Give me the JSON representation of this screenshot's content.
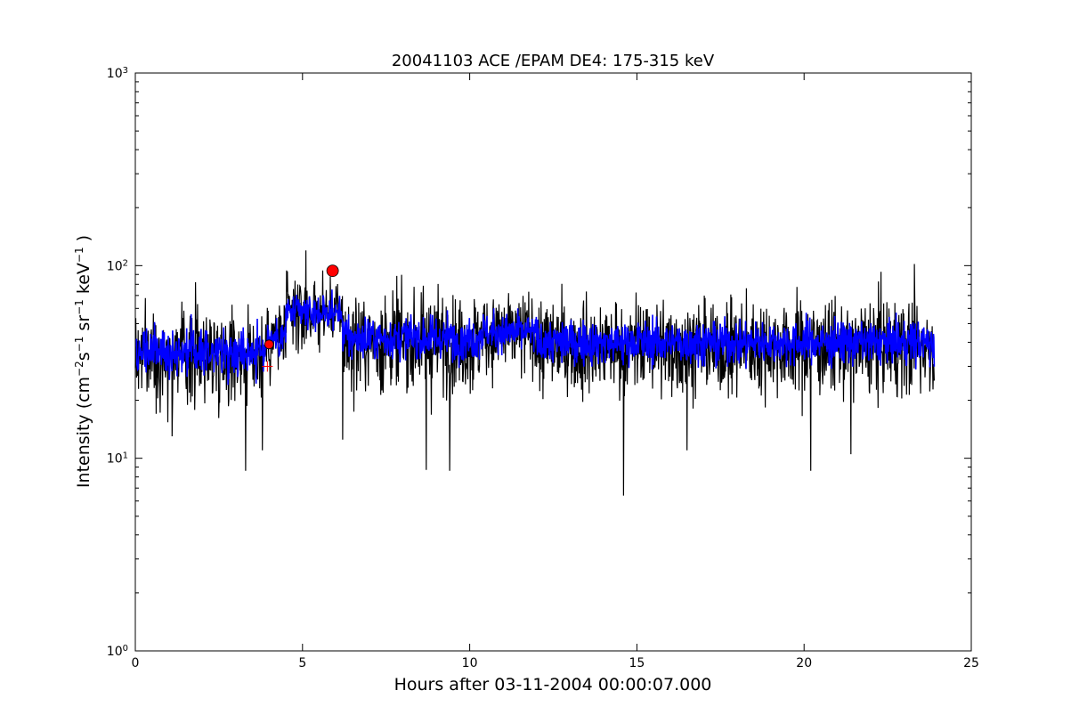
{
  "chart_data": {
    "type": "line",
    "title": "20041103 ACE /EPAM DE4: 175-315 keV",
    "xlabel": "Hours after 03-11-2004 00:00:07.000",
    "ylabel": "Intensity (cm",
    "ylabel_parts": {
      "base": "Intensity (cm",
      "cm_exp": "−2",
      "s_base": "s",
      "s_exp": "−1",
      "sr_base": " sr",
      "sr_exp": "−1",
      "kev_base": " keV",
      "kev_exp": "−1",
      "close": " )"
    },
    "xlim": [
      0,
      25
    ],
    "ylim": [
      1,
      1000
    ],
    "yscale": "log",
    "grid": false,
    "x_ticks": [
      {
        "value": 0,
        "label": "0"
      },
      {
        "value": 5,
        "label": "5"
      },
      {
        "value": 10,
        "label": "10"
      },
      {
        "value": 15,
        "label": "15"
      },
      {
        "value": 20,
        "label": "20"
      },
      {
        "value": 25,
        "label": "25"
      }
    ],
    "y_ticks": [
      {
        "value": 1,
        "base": "10",
        "exp": "0"
      },
      {
        "value": 10,
        "base": "10",
        "exp": "1"
      },
      {
        "value": 100,
        "base": "10",
        "exp": "2"
      },
      {
        "value": 1000,
        "base": "10",
        "exp": "3"
      }
    ],
    "series": [
      {
        "color": "#000000",
        "style": "raw-noisy",
        "segments": [
          {
            "x": [
              0,
              3.9
            ],
            "mean": 35,
            "spread": 0.17
          },
          {
            "x": [
              3.9,
              4.5
            ],
            "mean": 42,
            "spread": 0.15
          },
          {
            "x": [
              4.5,
              6.2
            ],
            "mean": 56,
            "spread": 0.13
          },
          {
            "x": [
              6.2,
              10.3
            ],
            "mean": 40,
            "spread": 0.18
          },
          {
            "x": [
              10.3,
              12.0
            ],
            "mean": 44,
            "spread": 0.15
          },
          {
            "x": [
              12.0,
              23.9
            ],
            "mean": 38,
            "spread": 0.17
          }
        ],
        "outliers": [
          {
            "x": 1.1,
            "y": 13
          },
          {
            "x": 1.8,
            "y": 82
          },
          {
            "x": 3.3,
            "y": 8.6
          },
          {
            "x": 3.8,
            "y": 11
          },
          {
            "x": 5.1,
            "y": 120
          },
          {
            "x": 6.2,
            "y": 12.5
          },
          {
            "x": 8.7,
            "y": 8.7
          },
          {
            "x": 9.4,
            "y": 8.6
          },
          {
            "x": 14.6,
            "y": 6.4
          },
          {
            "x": 16.5,
            "y": 11
          },
          {
            "x": 20.2,
            "y": 8.6
          },
          {
            "x": 21.4,
            "y": 10.5
          },
          {
            "x": 23.3,
            "y": 102
          },
          {
            "x": 22.3,
            "y": 93
          }
        ]
      },
      {
        "color": "#0000ff",
        "style": "smoothed",
        "segments": [
          {
            "x": [
              0,
              3.9
            ],
            "mean": 36,
            "spread": 0.08
          },
          {
            "x": [
              3.9,
              4.5
            ],
            "mean": 42,
            "spread": 0.07
          },
          {
            "x": [
              4.5,
              6.2
            ],
            "mean": 57,
            "spread": 0.06
          },
          {
            "x": [
              6.2,
              10.3
            ],
            "mean": 42,
            "spread": 0.08
          },
          {
            "x": [
              10.3,
              12.0
            ],
            "mean": 45,
            "spread": 0.07
          },
          {
            "x": [
              12.0,
              23.9
            ],
            "mean": 40,
            "spread": 0.08
          }
        ]
      }
    ],
    "markers": [
      {
        "shape": "circle",
        "x": 4.0,
        "y": 39,
        "color": "#ff0000",
        "size": "small"
      },
      {
        "shape": "circle",
        "x": 5.9,
        "y": 94,
        "color": "#ff0000",
        "size": "large"
      },
      {
        "shape": "plus",
        "x": 3.95,
        "y": 30,
        "color": "#ff0000",
        "size": "small"
      }
    ]
  }
}
